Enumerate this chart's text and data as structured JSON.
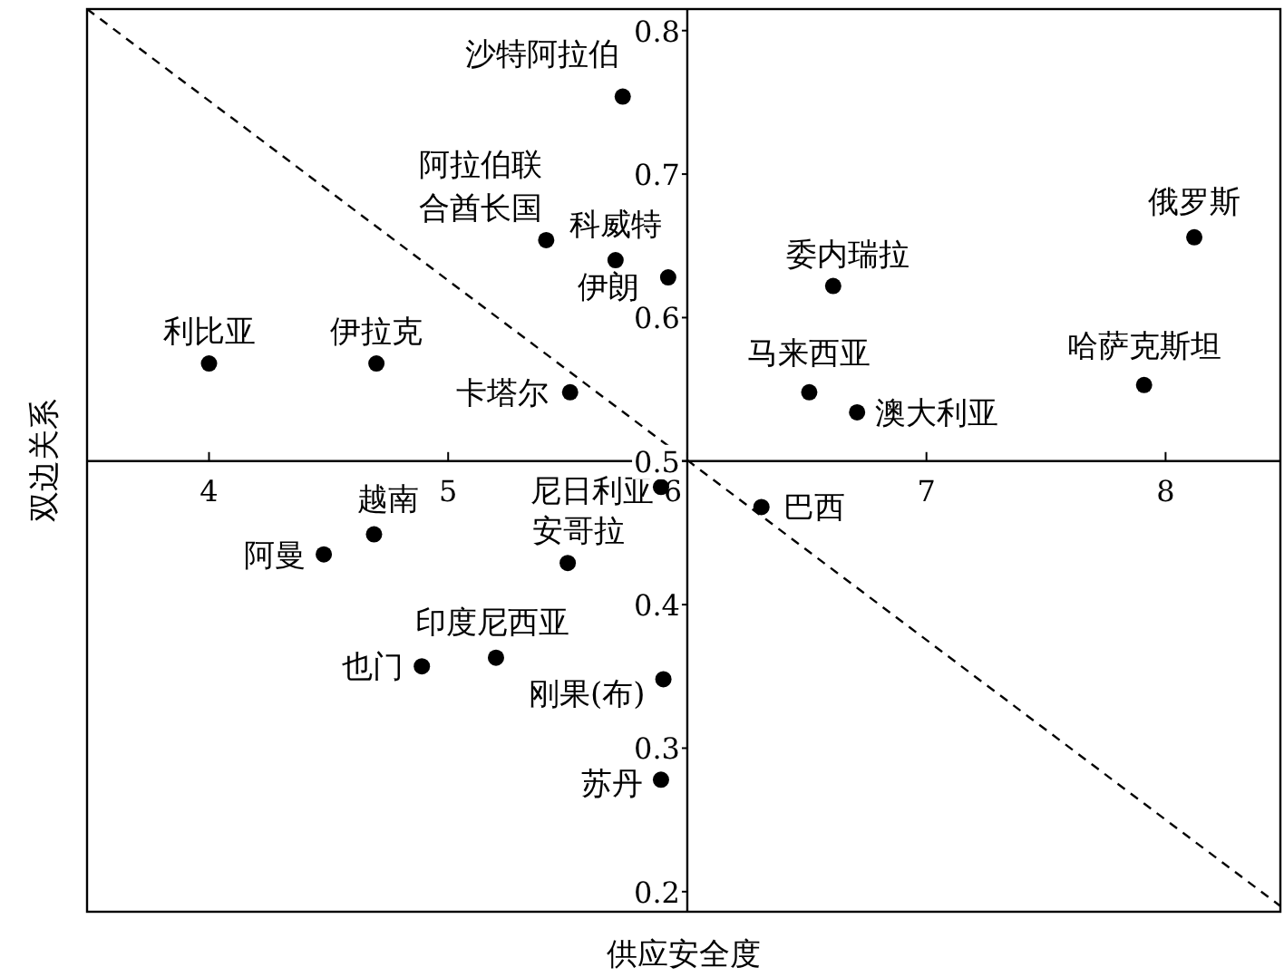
{
  "chart_data": {
    "type": "scatter",
    "xlabel": "供应安全度",
    "ylabel": "双边关系",
    "xlim": [
      3.49,
      8.48
    ],
    "ylim": [
      0.186,
      0.815
    ],
    "xticks": [
      4,
      5,
      6,
      7,
      8
    ],
    "yticks": [
      0.2,
      0.3,
      0.4,
      0.5,
      0.6,
      0.7,
      0.8
    ],
    "grid": false,
    "series": [
      {
        "marker": "circle",
        "color": "#000000",
        "x": [
          5.73,
          5.41,
          5.7,
          5.92,
          4.0,
          4.7,
          5.51,
          6.61,
          8.12,
          6.51,
          6.71,
          7.91,
          5.89,
          6.31,
          4.69,
          4.48,
          5.5,
          5.2,
          4.89,
          5.9,
          5.89
        ],
        "values": [
          0.754,
          0.654,
          0.64,
          0.628,
          0.568,
          0.568,
          0.548,
          0.622,
          0.656,
          0.548,
          0.534,
          0.553,
          0.482,
          0.468,
          0.449,
          0.435,
          0.429,
          0.363,
          0.357,
          0.348,
          0.278
        ]
      },
      {
        "type": "line",
        "line_style": "dashed",
        "marker": "none",
        "color": "#000000",
        "x": [
          3.49,
          8.48
        ],
        "values": [
          0.815,
          0.19
        ]
      }
    ],
    "annotations": [
      {
        "text": "沙特阿拉伯",
        "x": 5.73,
        "y": 0.754
      },
      {
        "text": "阿拉伯联合酋长国",
        "x": 5.41,
        "y": 0.654
      },
      {
        "text": "科威特",
        "x": 5.7,
        "y": 0.64
      },
      {
        "text": "伊朗",
        "x": 5.92,
        "y": 0.628
      },
      {
        "text": "利比亚",
        "x": 4.0,
        "y": 0.568
      },
      {
        "text": "伊拉克",
        "x": 4.7,
        "y": 0.568
      },
      {
        "text": "卡塔尔",
        "x": 5.51,
        "y": 0.548
      },
      {
        "text": "委内瑞拉",
        "x": 6.61,
        "y": 0.622
      },
      {
        "text": "俄罗斯",
        "x": 8.12,
        "y": 0.656
      },
      {
        "text": "马来西亚",
        "x": 6.51,
        "y": 0.548
      },
      {
        "text": "澳大利亚",
        "x": 6.71,
        "y": 0.534
      },
      {
        "text": "哈萨克斯坦",
        "x": 7.91,
        "y": 0.553
      },
      {
        "text": "尼日利亚",
        "x": 5.89,
        "y": 0.482
      },
      {
        "text": "巴西",
        "x": 6.31,
        "y": 0.468
      },
      {
        "text": "越南",
        "x": 4.69,
        "y": 0.449
      },
      {
        "text": "阿曼",
        "x": 4.48,
        "y": 0.435
      },
      {
        "text": "安哥拉",
        "x": 5.5,
        "y": 0.429
      },
      {
        "text": "印度尼西亚",
        "x": 5.2,
        "y": 0.363
      },
      {
        "text": "也门",
        "x": 4.89,
        "y": 0.357
      },
      {
        "text": "刚果(布)",
        "x": 5.9,
        "y": 0.348
      },
      {
        "text": "苏丹",
        "x": 5.89,
        "y": 0.278
      }
    ]
  }
}
